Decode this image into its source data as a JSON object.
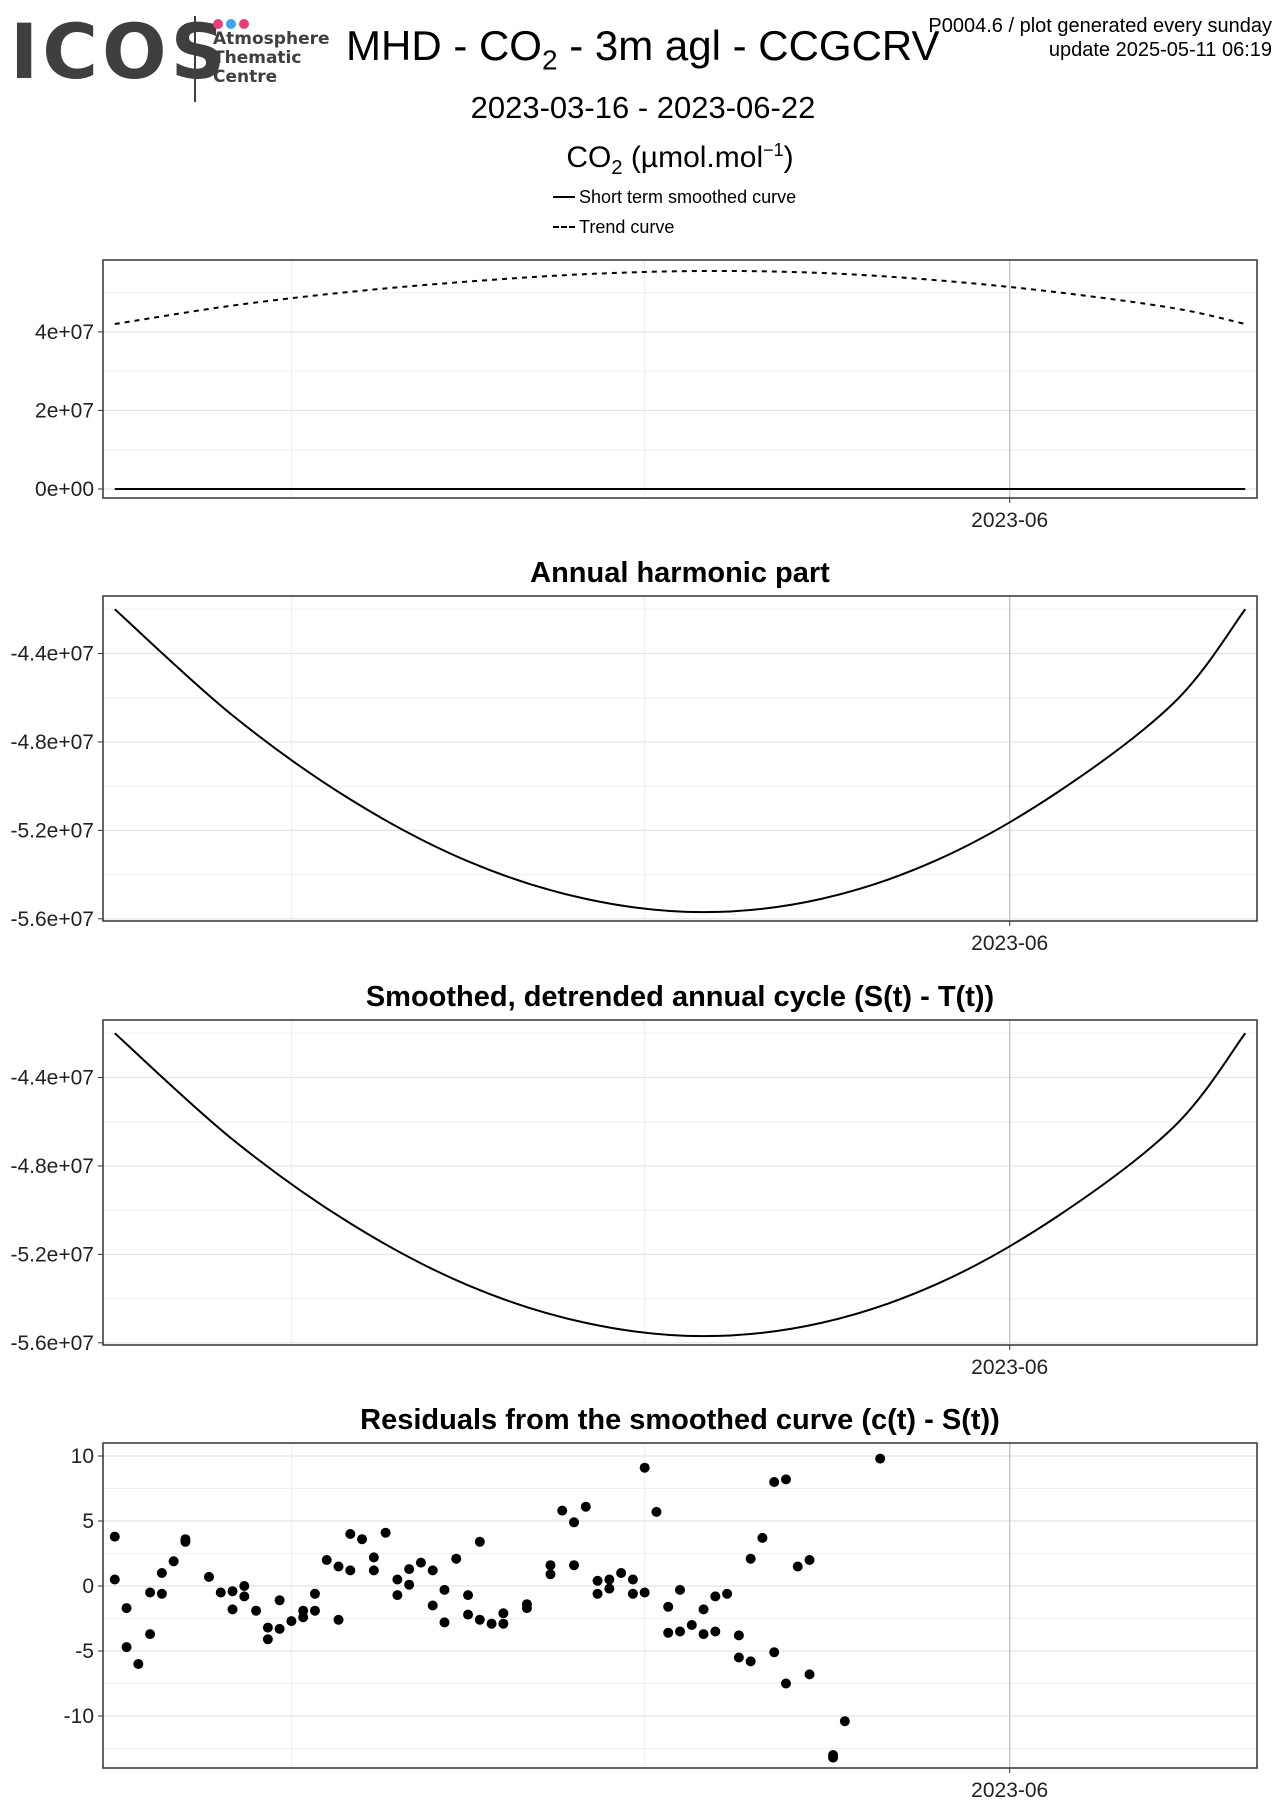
{
  "logo": {
    "word": "ICOS",
    "lines": [
      "Atmosphere",
      "Thematic",
      "Centre"
    ],
    "dot_colors": [
      "#e83e7a",
      "#3ba6e8",
      "#e83e7a"
    ]
  },
  "header": {
    "title_pre": "MHD - CO",
    "title_sub": "2",
    "title_post": " - 3m agl - CCGCRV",
    "meta_line1": "P0004.6 / plot generated every sunday",
    "meta_line2": "update  2025-05-11 06:19",
    "date_range": "2023-03-16 - 2023-06-22",
    "legend_title_pre": "CO",
    "legend_title_sub": "2",
    "legend_title_unit": " (µmol.mol",
    "legend_title_sup": "−1",
    "legend_title_end": ")",
    "legend_items": [
      {
        "label": "Short term smoothed curve",
        "style": "solid"
      },
      {
        "label": "Trend curve",
        "style": "dashed"
      }
    ]
  },
  "chart_data": [
    {
      "type": "line",
      "title": "",
      "x_range": [
        "2023-03-16",
        "2023-06-22"
      ],
      "x_tick_labels": [
        {
          "date": "2023-06-01",
          "label": "2023-06"
        }
      ],
      "ylim": [
        -2300000,
        58300000
      ],
      "y_ticks": [
        0,
        20000000,
        40000000
      ],
      "y_tick_labels": [
        "0e+00",
        "2e+07",
        "4e+07"
      ],
      "series": [
        {
          "name": "Trend curve",
          "style": "dashed",
          "x": [
            "2023-03-17",
            "2023-03-27",
            "2023-04-06",
            "2023-04-16",
            "2023-04-26",
            "2023-05-06",
            "2023-05-16",
            "2023-05-26",
            "2023-06-05",
            "2023-06-15",
            "2023-06-21"
          ],
          "values": [
            42000000,
            46700000,
            50200000,
            52800000,
            54700000,
            55500000,
            55000000,
            53100000,
            50100000,
            46000000,
            42000000
          ]
        },
        {
          "name": "Short term smoothed curve",
          "style": "solid",
          "x": [
            "2023-03-17",
            "2023-06-21"
          ],
          "values": [
            0,
            0
          ]
        }
      ],
      "grid": true
    },
    {
      "type": "line",
      "title": "Annual harmonic part",
      "x_range": [
        "2023-03-16",
        "2023-06-22"
      ],
      "x_tick_labels": [
        {
          "date": "2023-06-01",
          "label": "2023-06"
        }
      ],
      "ylim": [
        -56100000,
        -41400000
      ],
      "y_ticks": [
        -56000000,
        -52000000,
        -48000000,
        -44000000
      ],
      "y_tick_labels": [
        "-5.6e+07",
        "-5.2e+07",
        "-4.8e+07",
        "-4.4e+07"
      ],
      "series": [
        {
          "style": "solid",
          "x": [
            "2023-03-17",
            "2023-03-27",
            "2023-04-06",
            "2023-04-16",
            "2023-04-26",
            "2023-05-06",
            "2023-05-16",
            "2023-05-26",
            "2023-06-05",
            "2023-06-15",
            "2023-06-21"
          ],
          "values": [
            -42000000,
            -46800000,
            -50600000,
            -53400000,
            -55100000,
            -55700000,
            -55100000,
            -53300000,
            -50300000,
            -46200000,
            -42000000
          ]
        }
      ],
      "grid": true
    },
    {
      "type": "line",
      "title": "Smoothed, detrended annual cycle (S(t) - T(t))",
      "x_range": [
        "2023-03-16",
        "2023-06-22"
      ],
      "x_tick_labels": [
        {
          "date": "2023-06-01",
          "label": "2023-06"
        }
      ],
      "ylim": [
        -56100000,
        -41400000
      ],
      "y_ticks": [
        -56000000,
        -52000000,
        -48000000,
        -44000000
      ],
      "y_tick_labels": [
        "-5.6e+07",
        "-5.2e+07",
        "-4.8e+07",
        "-4.4e+07"
      ],
      "series": [
        {
          "style": "solid",
          "x": [
            "2023-03-17",
            "2023-03-27",
            "2023-04-06",
            "2023-04-16",
            "2023-04-26",
            "2023-05-06",
            "2023-05-16",
            "2023-05-26",
            "2023-06-05",
            "2023-06-15",
            "2023-06-21"
          ],
          "values": [
            -42000000,
            -46800000,
            -50600000,
            -53400000,
            -55100000,
            -55700000,
            -55100000,
            -53300000,
            -50300000,
            -46200000,
            -42000000
          ]
        }
      ],
      "grid": true
    },
    {
      "type": "scatter",
      "title": "Residuals from the smoothed curve (c(t) - S(t))",
      "x_range": [
        "2023-03-16",
        "2023-06-22"
      ],
      "x_tick_labels": [
        {
          "date": "2023-06-01",
          "label": "2023-06"
        }
      ],
      "ylim": [
        -14,
        11
      ],
      "y_ticks": [
        -10,
        -5,
        0,
        5,
        10
      ],
      "y_tick_labels": [
        "-10",
        "-5",
        "0",
        "5",
        "10"
      ],
      "points": [
        {
          "x": "2023-03-17",
          "y": 3.8
        },
        {
          "x": "2023-03-17",
          "y": 0.5
        },
        {
          "x": "2023-03-18",
          "y": -1.7
        },
        {
          "x": "2023-03-18",
          "y": -4.7
        },
        {
          "x": "2023-03-19",
          "y": -6.0
        },
        {
          "x": "2023-03-20",
          "y": -0.5
        },
        {
          "x": "2023-03-20",
          "y": -3.7
        },
        {
          "x": "2023-03-21",
          "y": 1.0
        },
        {
          "x": "2023-03-21",
          "y": -0.6
        },
        {
          "x": "2023-03-22",
          "y": 1.9
        },
        {
          "x": "2023-03-23",
          "y": 3.6
        },
        {
          "x": "2023-03-23",
          "y": 3.4
        },
        {
          "x": "2023-03-25",
          "y": 0.7
        },
        {
          "x": "2023-03-26",
          "y": -0.5
        },
        {
          "x": "2023-03-27",
          "y": -0.4
        },
        {
          "x": "2023-03-27",
          "y": -1.8
        },
        {
          "x": "2023-03-28",
          "y": 0.0
        },
        {
          "x": "2023-03-28",
          "y": -0.8
        },
        {
          "x": "2023-03-29",
          "y": -1.9
        },
        {
          "x": "2023-03-30",
          "y": -3.2
        },
        {
          "x": "2023-03-30",
          "y": -4.1
        },
        {
          "x": "2023-03-31",
          "y": -1.1
        },
        {
          "x": "2023-03-31",
          "y": -3.3
        },
        {
          "x": "2023-04-01",
          "y": -2.7
        },
        {
          "x": "2023-04-02",
          "y": -1.9
        },
        {
          "x": "2023-04-02",
          "y": -2.4
        },
        {
          "x": "2023-04-03",
          "y": -0.6
        },
        {
          "x": "2023-04-03",
          "y": -1.9
        },
        {
          "x": "2023-04-04",
          "y": 2.0
        },
        {
          "x": "2023-04-05",
          "y": 1.5
        },
        {
          "x": "2023-04-05",
          "y": -2.6
        },
        {
          "x": "2023-04-06",
          "y": 4.0
        },
        {
          "x": "2023-04-06",
          "y": 1.2
        },
        {
          "x": "2023-04-07",
          "y": 3.6
        },
        {
          "x": "2023-04-08",
          "y": 2.2
        },
        {
          "x": "2023-04-08",
          "y": 1.2
        },
        {
          "x": "2023-04-09",
          "y": 4.1
        },
        {
          "x": "2023-04-10",
          "y": 0.5
        },
        {
          "x": "2023-04-10",
          "y": -0.7
        },
        {
          "x": "2023-04-11",
          "y": 1.3
        },
        {
          "x": "2023-04-11",
          "y": 0.1
        },
        {
          "x": "2023-04-12",
          "y": 1.8
        },
        {
          "x": "2023-04-13",
          "y": 1.2
        },
        {
          "x": "2023-04-13",
          "y": -1.5
        },
        {
          "x": "2023-04-14",
          "y": -0.3
        },
        {
          "x": "2023-04-14",
          "y": -2.8
        },
        {
          "x": "2023-04-15",
          "y": 2.1
        },
        {
          "x": "2023-04-16",
          "y": -0.7
        },
        {
          "x": "2023-04-16",
          "y": -2.2
        },
        {
          "x": "2023-04-17",
          "y": 3.4
        },
        {
          "x": "2023-04-17",
          "y": -2.6
        },
        {
          "x": "2023-04-18",
          "y": -2.9
        },
        {
          "x": "2023-04-19",
          "y": -2.9
        },
        {
          "x": "2023-04-19",
          "y": -2.1
        },
        {
          "x": "2023-04-21",
          "y": -1.4
        },
        {
          "x": "2023-04-21",
          "y": -1.7
        },
        {
          "x": "2023-04-23",
          "y": 1.6
        },
        {
          "x": "2023-04-23",
          "y": 0.9
        },
        {
          "x": "2023-04-24",
          "y": 5.8
        },
        {
          "x": "2023-04-25",
          "y": 4.9
        },
        {
          "x": "2023-04-25",
          "y": 1.6
        },
        {
          "x": "2023-04-26",
          "y": 6.1
        },
        {
          "x": "2023-04-27",
          "y": 0.4
        },
        {
          "x": "2023-04-27",
          "y": -0.6
        },
        {
          "x": "2023-04-28",
          "y": 0.5
        },
        {
          "x": "2023-04-28",
          "y": -0.2
        },
        {
          "x": "2023-04-29",
          "y": 1.0
        },
        {
          "x": "2023-04-30",
          "y": 0.5
        },
        {
          "x": "2023-04-30",
          "y": -0.6
        },
        {
          "x": "2023-05-01",
          "y": 9.1
        },
        {
          "x": "2023-05-01",
          "y": -0.5
        },
        {
          "x": "2023-05-02",
          "y": 5.7
        },
        {
          "x": "2023-05-03",
          "y": -1.6
        },
        {
          "x": "2023-05-03",
          "y": -3.6
        },
        {
          "x": "2023-05-04",
          "y": -0.3
        },
        {
          "x": "2023-05-04",
          "y": -3.5
        },
        {
          "x": "2023-05-05",
          "y": -3.0
        },
        {
          "x": "2023-05-06",
          "y": -1.8
        },
        {
          "x": "2023-05-06",
          "y": -3.7
        },
        {
          "x": "2023-05-07",
          "y": -0.8
        },
        {
          "x": "2023-05-07",
          "y": -3.5
        },
        {
          "x": "2023-05-08",
          "y": -0.6
        },
        {
          "x": "2023-05-09",
          "y": -3.8
        },
        {
          "x": "2023-05-09",
          "y": -5.5
        },
        {
          "x": "2023-05-10",
          "y": 2.1
        },
        {
          "x": "2023-05-10",
          "y": -5.8
        },
        {
          "x": "2023-05-11",
          "y": 3.7
        },
        {
          "x": "2023-05-12",
          "y": 8.0
        },
        {
          "x": "2023-05-12",
          "y": -5.1
        },
        {
          "x": "2023-05-13",
          "y": 8.2
        },
        {
          "x": "2023-05-13",
          "y": -7.5
        },
        {
          "x": "2023-05-14",
          "y": 1.5
        },
        {
          "x": "2023-05-15",
          "y": 2.0
        },
        {
          "x": "2023-05-15",
          "y": -6.8
        },
        {
          "x": "2023-05-17",
          "y": -13.0
        },
        {
          "x": "2023-05-17",
          "y": -13.2
        },
        {
          "x": "2023-05-18",
          "y": -10.4
        },
        {
          "x": "2023-05-21",
          "y": 9.8
        }
      ],
      "grid": true
    }
  ]
}
